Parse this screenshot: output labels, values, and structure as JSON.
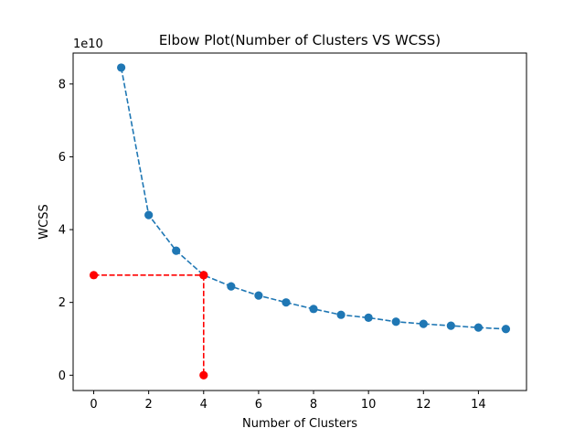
{
  "chart_data": {
    "type": "line",
    "title": "Elbow Plot(Number of Clusters VS WCSS)",
    "xlabel": "Number of Clusters",
    "ylabel": "WCSS",
    "y_offset_label": "1e10",
    "xlim": [
      -0.75,
      15.75
    ],
    "ylim": [
      -0.42,
      8.85
    ],
    "y_unit_multiplier": 10000000000,
    "xticks": [
      0,
      2,
      4,
      6,
      8,
      10,
      12,
      14
    ],
    "yticks": [
      0,
      2,
      4,
      6,
      8
    ],
    "grid": false,
    "series": [
      {
        "color": "#1f77b4",
        "style": "dashed",
        "marker": "circle",
        "x": [
          1,
          2,
          3,
          4,
          5,
          6,
          7,
          8,
          9,
          10,
          11,
          12,
          13,
          14,
          15
        ],
        "y": [
          8.45,
          4.4,
          3.42,
          2.75,
          2.44,
          2.19,
          2.0,
          1.82,
          1.66,
          1.58,
          1.47,
          1.41,
          1.36,
          1.31,
          1.27
        ]
      },
      {
        "color": "#ff0000",
        "style": "dashed",
        "marker": "circle",
        "x": [
          0,
          4
        ],
        "y": [
          2.75,
          2.75
        ]
      },
      {
        "color": "#ff0000",
        "style": "dashed",
        "marker": "circle",
        "x": [
          4,
          4
        ],
        "y": [
          2.75,
          0
        ]
      }
    ]
  }
}
